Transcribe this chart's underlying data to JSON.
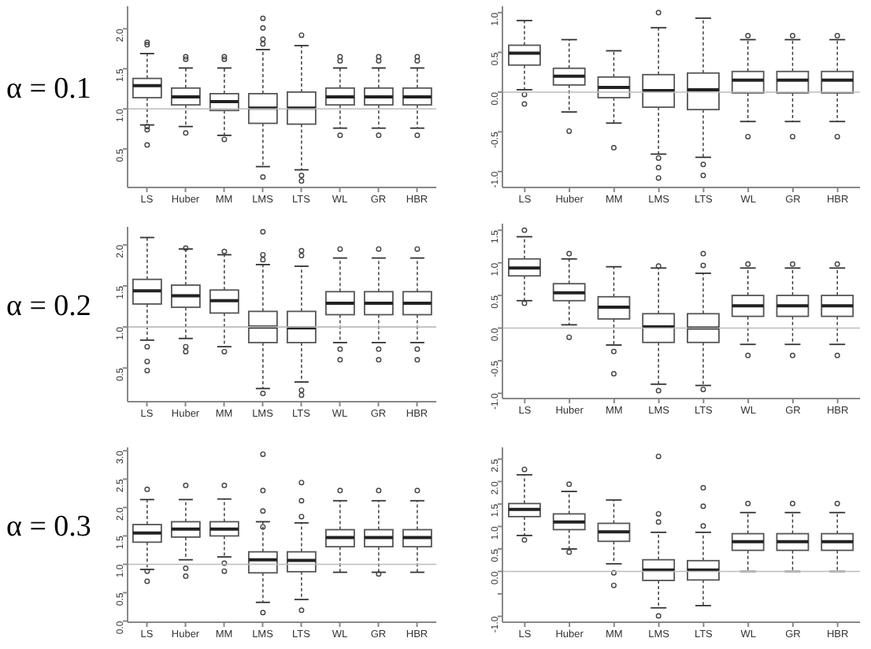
{
  "chart_data": [
    {
      "type": "box",
      "annotations": [
        "α = 0.1"
      ],
      "categories": [
        "LS",
        "Huber",
        "MM",
        "LMS",
        "LTS",
        "WL",
        "GR",
        "HBR"
      ],
      "ylim": [
        0.02,
        2.28
      ],
      "yticks": [
        {
          "value": 0.5,
          "label": "0.5"
        },
        {
          "value": 1,
          "label": "1.0"
        },
        {
          "value": 1.5,
          "label": "1.5"
        },
        {
          "value": 2,
          "label": "2.0"
        }
      ],
      "ref_lines": [
        {
          "axis": "y",
          "value": 1,
          "color": "#bbbbbb"
        }
      ],
      "boxes": [
        {
          "low": 0.8,
          "q1": 1.14,
          "median": 1.29,
          "q3": 1.38,
          "high": 1.69,
          "outliers": [
            1.8,
            1.83,
            0.78,
            0.74,
            0.55
          ]
        },
        {
          "low": 0.78,
          "q1": 1.05,
          "median": 1.15,
          "q3": 1.26,
          "high": 1.51,
          "outliers": [
            1.62,
            1.65,
            0.7
          ]
        },
        {
          "low": 0.67,
          "q1": 0.98,
          "median": 1.09,
          "q3": 1.19,
          "high": 1.51,
          "outliers": [
            1.62,
            1.65,
            0.62
          ]
        },
        {
          "low": 0.28,
          "q1": 0.82,
          "median": 1.01,
          "q3": 1.19,
          "high": 1.74,
          "outliers": [
            2.13,
            2.01,
            1.87,
            1.81,
            0.15
          ]
        },
        {
          "low": 0.24,
          "q1": 0.81,
          "median": 1.01,
          "q3": 1.21,
          "high": 1.79,
          "outliers": [
            1.92,
            0.17,
            0.1
          ]
        },
        {
          "low": 0.76,
          "q1": 1.05,
          "median": 1.15,
          "q3": 1.26,
          "high": 1.51,
          "outliers": [
            1.65,
            1.6,
            0.67
          ]
        },
        {
          "low": 0.76,
          "q1": 1.05,
          "median": 1.15,
          "q3": 1.26,
          "high": 1.51,
          "outliers": [
            1.65,
            1.6,
            0.67
          ]
        },
        {
          "low": 0.76,
          "q1": 1.05,
          "median": 1.15,
          "q3": 1.26,
          "high": 1.51,
          "outliers": [
            1.65,
            1.6,
            0.67
          ]
        }
      ]
    },
    {
      "type": "box",
      "categories": [
        "LS",
        "Huber",
        "MM",
        "LMS",
        "LTS",
        "WL",
        "GR",
        "HBR"
      ],
      "ylim": [
        -1.2,
        1.08
      ],
      "yticks": [
        {
          "value": -1,
          "label": "-1.0"
        },
        {
          "value": -0.5,
          "label": "-0.5"
        },
        {
          "value": 0,
          "label": "0.0"
        },
        {
          "value": 0.5,
          "label": "0.5"
        },
        {
          "value": 1,
          "label": "1.0"
        }
      ],
      "ref_lines": [
        {
          "axis": "y",
          "value": 0,
          "color": "#bbbbbb"
        }
      ],
      "boxes": [
        {
          "low": 0.03,
          "q1": 0.34,
          "median": 0.49,
          "q3": 0.59,
          "high": 0.9,
          "outliers": [
            -0.03,
            -0.15
          ]
        },
        {
          "low": -0.25,
          "q1": 0.09,
          "median": 0.2,
          "q3": 0.3,
          "high": 0.66,
          "outliers": [
            -0.49
          ]
        },
        {
          "low": -0.39,
          "q1": -0.07,
          "median": 0.06,
          "q3": 0.19,
          "high": 0.52,
          "outliers": [
            -0.7
          ]
        },
        {
          "low": -0.78,
          "q1": -0.19,
          "median": 0.02,
          "q3": 0.22,
          "high": 0.81,
          "outliers": [
            1,
            -0.83,
            -0.95,
            -1.08
          ]
        },
        {
          "low": -0.82,
          "q1": -0.22,
          "median": 0.03,
          "q3": 0.24,
          "high": 0.93,
          "outliers": [
            -0.91,
            -1.05
          ]
        },
        {
          "low": -0.37,
          "q1": -0.01,
          "median": 0.15,
          "q3": 0.26,
          "high": 0.66,
          "outliers": [
            0.71,
            -0.56
          ]
        },
        {
          "low": -0.37,
          "q1": -0.01,
          "median": 0.15,
          "q3": 0.26,
          "high": 0.66,
          "outliers": [
            0.71,
            -0.56
          ]
        },
        {
          "low": -0.37,
          "q1": -0.01,
          "median": 0.15,
          "q3": 0.26,
          "high": 0.66,
          "outliers": [
            0.71,
            -0.56
          ]
        }
      ]
    },
    {
      "type": "box",
      "annotations": [
        "α = 0.2"
      ],
      "categories": [
        "LS",
        "Huber",
        "MM",
        "LMS",
        "LTS",
        "WL",
        "GR",
        "HBR"
      ],
      "ylim": [
        0.09,
        2.22
      ],
      "yticks": [
        {
          "value": 0.5,
          "label": "0.5"
        },
        {
          "value": 1,
          "label": "1.0"
        },
        {
          "value": 1.5,
          "label": "1.5"
        },
        {
          "value": 2,
          "label": "2.0"
        }
      ],
      "ref_lines": [
        {
          "axis": "y",
          "value": 1,
          "color": "#bbbbbb"
        }
      ],
      "boxes": [
        {
          "low": 0.84,
          "q1": 1.28,
          "median": 1.44,
          "q3": 1.58,
          "high": 2.09,
          "outliers": [
            0.76,
            0.58,
            0.47
          ]
        },
        {
          "low": 0.86,
          "q1": 1.24,
          "median": 1.38,
          "q3": 1.51,
          "high": 1.95,
          "outliers": [
            1.96,
            0.76,
            0.7
          ]
        },
        {
          "low": 0.76,
          "q1": 1.17,
          "median": 1.32,
          "q3": 1.45,
          "high": 1.88,
          "outliers": [
            1.92,
            0.7
          ]
        },
        {
          "low": 0.25,
          "q1": 0.81,
          "median": 1,
          "q3": 1.19,
          "high": 1.76,
          "outliers": [
            2.16,
            1.88,
            1.82,
            0.19
          ]
        },
        {
          "low": 0.33,
          "q1": 0.81,
          "median": 0.99,
          "q3": 1.19,
          "high": 1.74,
          "outliers": [
            1.93,
            1.87,
            0.23,
            0.17
          ]
        },
        {
          "low": 0.81,
          "q1": 1.15,
          "median": 1.29,
          "q3": 1.43,
          "high": 1.84,
          "outliers": [
            1.95,
            0.73,
            0.6
          ]
        },
        {
          "low": 0.81,
          "q1": 1.15,
          "median": 1.29,
          "q3": 1.43,
          "high": 1.84,
          "outliers": [
            1.95,
            0.73,
            0.6
          ]
        },
        {
          "low": 0.81,
          "q1": 1.15,
          "median": 1.29,
          "q3": 1.43,
          "high": 1.84,
          "outliers": [
            1.95,
            0.73,
            0.6
          ]
        }
      ]
    },
    {
      "type": "box",
      "categories": [
        "LS",
        "Huber",
        "MM",
        "LMS",
        "LTS",
        "WL",
        "GR",
        "HBR"
      ],
      "ylim": [
        -1.08,
        1.6
      ],
      "yticks": [
        {
          "value": -1,
          "label": "-1.0"
        },
        {
          "value": -0.5,
          "label": "-0.5"
        },
        {
          "value": 0,
          "label": "0.0"
        },
        {
          "value": 0.5,
          "label": "0.5"
        },
        {
          "value": 1,
          "label": "1.0"
        },
        {
          "value": 1.5,
          "label": "1.5"
        }
      ],
      "ref_lines": [
        {
          "axis": "y",
          "value": 0,
          "color": "#bbbbbb"
        }
      ],
      "boxes": [
        {
          "low": 0.42,
          "q1": 0.8,
          "median": 0.92,
          "q3": 1.06,
          "high": 1.4,
          "outliers": [
            1.5,
            0.38
          ]
        },
        {
          "low": 0.05,
          "q1": 0.42,
          "median": 0.54,
          "q3": 0.68,
          "high": 1.06,
          "outliers": [
            1.14,
            -0.14
          ]
        },
        {
          "low": -0.26,
          "q1": 0.14,
          "median": 0.32,
          "q3": 0.48,
          "high": 0.94,
          "outliers": [
            -0.36,
            -0.7
          ]
        },
        {
          "low": -0.86,
          "q1": -0.22,
          "median": 0.02,
          "q3": 0.22,
          "high": 0.92,
          "outliers": [
            0.95,
            -0.96
          ]
        },
        {
          "low": -0.88,
          "q1": -0.22,
          "median": 0,
          "q3": 0.22,
          "high": 0.84,
          "outliers": [
            1.14,
            0.96,
            -0.94
          ]
        },
        {
          "low": -0.25,
          "q1": 0.18,
          "median": 0.34,
          "q3": 0.5,
          "high": 0.92,
          "outliers": [
            0.98,
            -0.42
          ]
        },
        {
          "low": -0.25,
          "q1": 0.18,
          "median": 0.34,
          "q3": 0.5,
          "high": 0.92,
          "outliers": [
            0.98,
            -0.42
          ]
        },
        {
          "low": -0.25,
          "q1": 0.18,
          "median": 0.34,
          "q3": 0.5,
          "high": 0.92,
          "outliers": [
            0.98,
            -0.42
          ]
        }
      ]
    },
    {
      "type": "box",
      "annotations": [
        "α = 0.3"
      ],
      "categories": [
        "LS",
        "Huber",
        "MM",
        "LMS",
        "LTS",
        "WL",
        "GR",
        "HBR"
      ],
      "ylim": [
        -0.02,
        3.06
      ],
      "yticks": [
        {
          "value": 0,
          "label": "0.0"
        },
        {
          "value": 0.5,
          "label": "0.5"
        },
        {
          "value": 1,
          "label": "1.0"
        },
        {
          "value": 1.5,
          "label": "1.5"
        },
        {
          "value": 2,
          "label": "2.0"
        },
        {
          "value": 2.5,
          "label": "2.5"
        },
        {
          "value": 3,
          "label": "3.0"
        }
      ],
      "ref_lines": [
        {
          "axis": "y",
          "value": 1,
          "color": "#bbbbbb"
        }
      ],
      "boxes": [
        {
          "low": 0.91,
          "q1": 1.39,
          "median": 1.55,
          "q3": 1.7,
          "high": 2.14,
          "outliers": [
            2.32,
            0.88,
            0.7
          ]
        },
        {
          "low": 1.08,
          "q1": 1.48,
          "median": 1.62,
          "q3": 1.75,
          "high": 2.14,
          "outliers": [
            2.39,
            0.93,
            0.79
          ]
        },
        {
          "low": 1.13,
          "q1": 1.5,
          "median": 1.62,
          "q3": 1.75,
          "high": 2.15,
          "outliers": [
            2.39,
            1.02,
            0.88
          ]
        },
        {
          "low": 0.33,
          "q1": 0.85,
          "median": 1.08,
          "q3": 1.22,
          "high": 1.75,
          "outliers": [
            2.94,
            2.3,
            1.94,
            1.66,
            0.15
          ]
        },
        {
          "low": 0.38,
          "q1": 0.87,
          "median": 1.07,
          "q3": 1.22,
          "high": 1.73,
          "outliers": [
            2.44,
            2.12,
            1.84,
            0.19
          ]
        },
        {
          "low": 0.86,
          "q1": 1.31,
          "median": 1.47,
          "q3": 1.61,
          "high": 2.12,
          "outliers": [
            2.3
          ]
        },
        {
          "low": 0.86,
          "q1": 1.31,
          "median": 1.47,
          "q3": 1.61,
          "high": 2.12,
          "outliers": [
            2.3,
            0.83
          ]
        },
        {
          "low": 0.86,
          "q1": 1.31,
          "median": 1.47,
          "q3": 1.61,
          "high": 2.12,
          "outliers": [
            2.3
          ]
        }
      ]
    },
    {
      "type": "box",
      "categories": [
        "LS",
        "Huber",
        "MM",
        "LMS",
        "LTS",
        "WL",
        "GR",
        "HBR"
      ],
      "ylim": [
        -1.13,
        2.76
      ],
      "yticks": [
        {
          "value": -1,
          "label": "-1.0"
        },
        {
          "value": -0.5,
          "label": null
        },
        {
          "value": 0,
          "label": "0.0"
        },
        {
          "value": 0.5,
          "label": "0.5"
        },
        {
          "value": 1,
          "label": "1.0"
        },
        {
          "value": 1.5,
          "label": "1.5"
        },
        {
          "value": 2,
          "label": "2.0"
        },
        {
          "value": 2.5,
          "label": "2.5"
        }
      ],
      "ref_lines": [
        {
          "axis": "y",
          "value": 0,
          "color": "#bbbbbb"
        }
      ],
      "boxes": [
        {
          "low": 0.8,
          "q1": 1.22,
          "median": 1.38,
          "q3": 1.51,
          "high": 2.15,
          "outliers": [
            2.27,
            0.7
          ]
        },
        {
          "low": 0.5,
          "q1": 0.93,
          "median": 1.1,
          "q3": 1.28,
          "high": 1.78,
          "outliers": [
            1.94,
            0.43
          ]
        },
        {
          "low": 0.17,
          "q1": 0.67,
          "median": 0.88,
          "q3": 1.07,
          "high": 1.59,
          "outliers": [
            -0.03,
            -0.31
          ]
        },
        {
          "low": -0.81,
          "q1": -0.2,
          "median": 0.03,
          "q3": 0.26,
          "high": 0.87,
          "outliers": [
            2.56,
            1.28,
            1.1,
            -0.99
          ]
        },
        {
          "low": -0.76,
          "q1": -0.19,
          "median": 0.03,
          "q3": 0.24,
          "high": 0.87,
          "outliers": [
            1.86,
            1.45,
            1.01
          ]
        },
        {
          "low": 0,
          "q1": 0.47,
          "median": 0.66,
          "q3": 0.84,
          "high": 1.31,
          "outliers": [
            1.51
          ]
        },
        {
          "low": 0,
          "q1": 0.47,
          "median": 0.66,
          "q3": 0.84,
          "high": 1.31,
          "outliers": [
            1.51
          ]
        },
        {
          "low": 0,
          "q1": 0.47,
          "median": 0.66,
          "q3": 0.84,
          "high": 1.31,
          "outliers": [
            1.51
          ]
        }
      ]
    }
  ]
}
